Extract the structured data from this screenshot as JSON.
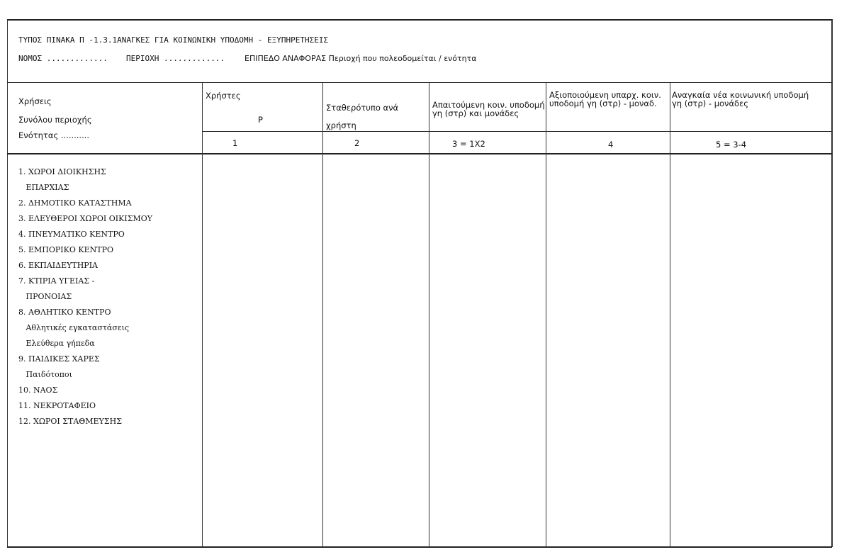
{
  "header": {
    "title": "ΤΥΠΟΣ ΠΙΝΑΚΑ Π -1.3.1ΑΝΑΓΚΕΣ ΓΙΑ ΚΟΙΝΩΝΙΚΗ ΥΠΟΔΟΜΗ -  ΕΞΥΠΗΡΕΤΗΣΕΙΣ",
    "nomos": "ΝΟΜΟΣ .............",
    "periochi": "ΠΕΡΙΟΧΗ .............",
    "epipedo": "ΕΠΙΠΕΔΟ ΑΝΑΦΟΡΑΣ Περιοχή που πολεοδομείται / ενότητα"
  },
  "table": {
    "row_header": [
      "Χρήσεις",
      "Συνόλου περιοχής",
      "Ενότητας ..........."
    ],
    "columns": [
      {
        "label": "Χρήστες",
        "sub": "Ρ",
        "num": "1"
      },
      {
        "label": "Σταθερότυπο ανά χρήστη",
        "sub": "",
        "num": "2"
      },
      {
        "label": "Απαιτούμενη κοιν. υποδομή γη (στρ) και μονάδες",
        "sub": "",
        "num": "3 = 1Χ2"
      },
      {
        "label": "Αξιοποιούμενη υπαρχ. κοιν. υποδομή γη (στρ) - μοναδ.",
        "sub": "",
        "num": "4"
      },
      {
        "label": "Αναγκαία νέα κοινωνική υποδομή γη (στρ) - μονάδες",
        "sub": "",
        "num": "5 = 3-4"
      }
    ],
    "items": [
      "1. ΧΩΡΟΙ ΔΙΟΙΚΗΣΗΣ",
      "   ΕΠΑΡΧΙΑΣ",
      "2. ΔΗΜΟΤΙΚΟ ΚΑΤΑΣΤΗΜΑ",
      "3. ΕΛΕΥΘΕΡΟΙ ΧΩΡΟΙ ΟΙΚΙΣΜΟΥ",
      "4. ΠΝΕΥΜΑΤΙΚΟ ΚΕΝΤΡΟ",
      "5. ΕΜΠΟΡΙΚΟ ΚΕΝΤΡΟ",
      "6. ΕΚΠΑΙΔΕΥΤΗΡΙΑ",
      "7. ΚΤΙΡΙΑ ΥΓΕΙΑΣ -",
      "   ΠΡΟΝΟΙΑΣ",
      "8. ΑΘΛΗΤΙΚΟ ΚΕΝΤΡΟ",
      "   Αθλητικές εγκαταστάσεις",
      "   Ελεύθερα γήπεδα",
      "9. ΠΑΙΔΙΚΕΣ ΧΑΡΕΣ",
      "   Παιδότοποι",
      "10. ΝΑΟΣ",
      "11. ΝΕΚΡΟΤΑΦΕΙΟ",
      "12. ΧΩΡΟΙ ΣΤΑΘΜΕΥΣΗΣ"
    ]
  }
}
